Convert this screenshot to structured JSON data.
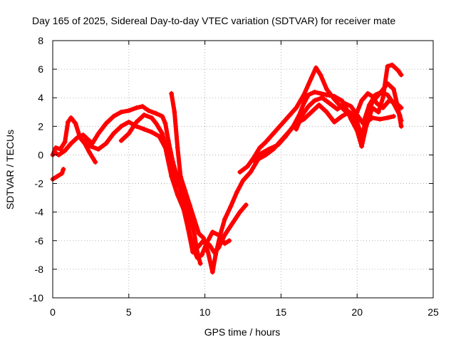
{
  "chart_data": {
    "type": "scatter",
    "title": "Day 165 of 2025, Sidereal Day-to-day VTEC variation (SDTVAR) for receiver mate",
    "xlabel": "GPS time / hours",
    "ylabel": "SDTVAR / TECUs",
    "xlim": [
      0,
      25
    ],
    "ylim": [
      -10,
      8
    ],
    "xticks": [
      "0",
      "5",
      "10",
      "15",
      "20",
      "25"
    ],
    "yticks": [
      "-10",
      "-8",
      "-6",
      "-4",
      "-2",
      "0",
      "2",
      "4",
      "6",
      "8"
    ],
    "grid": true,
    "marker": "+",
    "color": "#ff0000",
    "segments": [
      [
        [
          0.0,
          -1.7
        ],
        [
          0.3,
          -1.5
        ],
        [
          0.6,
          -1.3
        ],
        [
          0.7,
          -1.0
        ]
      ],
      [
        [
          0.0,
          0.0
        ],
        [
          0.2,
          0.5
        ],
        [
          0.5,
          0.4
        ],
        [
          0.8,
          0.9
        ],
        [
          1.0,
          2.3
        ],
        [
          1.2,
          2.6
        ],
        [
          1.5,
          2.2
        ],
        [
          1.8,
          1.2
        ],
        [
          2.1,
          0.8
        ],
        [
          2.4,
          0.2
        ],
        [
          2.8,
          -0.5
        ]
      ],
      [
        [
          0.1,
          0.2
        ],
        [
          0.4,
          0.0
        ],
        [
          0.8,
          0.3
        ],
        [
          1.2,
          0.8
        ],
        [
          1.6,
          1.2
        ],
        [
          2.0,
          1.4
        ],
        [
          2.3,
          1.1
        ],
        [
          2.6,
          0.8
        ],
        [
          3.0,
          1.5
        ],
        [
          3.5,
          2.2
        ],
        [
          4.0,
          2.7
        ],
        [
          4.5,
          3.0
        ],
        [
          5.0,
          3.1
        ],
        [
          5.5,
          3.3
        ],
        [
          5.9,
          3.4
        ],
        [
          6.3,
          3.1
        ],
        [
          6.8,
          2.9
        ],
        [
          7.2,
          2.7
        ],
        [
          7.4,
          2.2
        ],
        [
          7.6,
          1.0
        ],
        [
          7.9,
          -0.5
        ],
        [
          8.3,
          -2.0
        ],
        [
          8.6,
          -3.5
        ],
        [
          8.9,
          -5.0
        ],
        [
          9.2,
          -6.5
        ],
        [
          9.5,
          -7.2
        ],
        [
          9.8,
          -7.0
        ],
        [
          10.1,
          -6.2
        ],
        [
          10.5,
          -5.4
        ],
        [
          10.9,
          -5.6
        ],
        [
          11.3,
          -6.2
        ],
        [
          11.6,
          -6.0
        ]
      ],
      [
        [
          2.0,
          1.0
        ],
        [
          2.5,
          0.6
        ],
        [
          3.0,
          0.4
        ],
        [
          3.5,
          0.8
        ],
        [
          4.0,
          1.5
        ],
        [
          4.5,
          2.0
        ],
        [
          5.0,
          2.3
        ],
        [
          5.5,
          2.0
        ],
        [
          6.0,
          1.8
        ],
        [
          6.5,
          1.6
        ],
        [
          7.0,
          1.3
        ],
        [
          7.4,
          0.5
        ],
        [
          7.8,
          -1.5
        ],
        [
          8.2,
          -2.8
        ],
        [
          8.6,
          -3.8
        ],
        [
          8.9,
          -5.2
        ],
        [
          9.2,
          -6.8
        ],
        [
          9.5,
          -6.5
        ],
        [
          9.9,
          -6.0
        ],
        [
          10.3,
          -6.3
        ],
        [
          10.6,
          -6.8
        ],
        [
          10.9,
          -6.5
        ],
        [
          11.3,
          -5.6
        ],
        [
          11.8,
          -4.8
        ],
        [
          12.3,
          -4.0
        ],
        [
          12.7,
          -3.5
        ]
      ],
      [
        [
          4.5,
          1.0
        ],
        [
          5.0,
          1.5
        ],
        [
          5.5,
          2.3
        ],
        [
          6.0,
          2.8
        ],
        [
          6.5,
          2.6
        ],
        [
          6.8,
          2.2
        ],
        [
          7.2,
          1.5
        ],
        [
          7.6,
          -0.2
        ],
        [
          8.0,
          -1.5
        ],
        [
          8.4,
          -2.4
        ],
        [
          8.7,
          -3.0
        ],
        [
          9.0,
          -4.2
        ],
        [
          9.3,
          -5.5
        ],
        [
          9.5,
          -6.8
        ],
        [
          9.7,
          -7.6
        ]
      ],
      [
        [
          7.8,
          4.3
        ],
        [
          8.0,
          3.0
        ],
        [
          8.2,
          0.5
        ],
        [
          8.4,
          -1.5
        ],
        [
          8.7,
          -2.5
        ],
        [
          9.0,
          -3.5
        ],
        [
          9.3,
          -4.5
        ],
        [
          9.6,
          -5.5
        ],
        [
          9.9,
          -5.8
        ],
        [
          10.2,
          -6.8
        ],
        [
          10.5,
          -8.2
        ],
        [
          10.7,
          -7.0
        ],
        [
          11.0,
          -5.6
        ],
        [
          11.3,
          -4.5
        ],
        [
          11.7,
          -3.6
        ],
        [
          12.1,
          -2.6
        ],
        [
          12.5,
          -1.8
        ],
        [
          13.0,
          -1.2
        ],
        [
          13.5,
          -0.3
        ],
        [
          14.0,
          0.0
        ],
        [
          14.5,
          0.4
        ],
        [
          15.0,
          1.0
        ],
        [
          15.5,
          1.6
        ],
        [
          16.0,
          2.2
        ],
        [
          16.5,
          2.5
        ],
        [
          17.0,
          3.0
        ],
        [
          17.5,
          3.5
        ],
        [
          18.0,
          3.0
        ],
        [
          18.5,
          2.3
        ],
        [
          19.0,
          2.7
        ],
        [
          19.5,
          3.0
        ],
        [
          20.0,
          2.6
        ],
        [
          20.5,
          2.2
        ],
        [
          21.0,
          2.6
        ],
        [
          21.5,
          2.5
        ],
        [
          22.0,
          2.6
        ],
        [
          22.4,
          2.7
        ]
      ],
      [
        [
          12.3,
          -1.2
        ],
        [
          12.8,
          -0.8
        ],
        [
          13.2,
          -0.2
        ],
        [
          13.6,
          0.5
        ],
        [
          14.0,
          0.9
        ],
        [
          14.5,
          1.5
        ],
        [
          15.0,
          2.1
        ],
        [
          15.5,
          2.7
        ],
        [
          16.0,
          3.3
        ],
        [
          16.5,
          4.2
        ],
        [
          17.0,
          5.4
        ],
        [
          17.3,
          6.1
        ],
        [
          17.6,
          5.6
        ],
        [
          18.0,
          4.6
        ],
        [
          18.5,
          3.9
        ],
        [
          19.0,
          3.3
        ],
        [
          19.5,
          2.8
        ],
        [
          20.0,
          2.3
        ],
        [
          20.3,
          1.3
        ],
        [
          20.6,
          2.5
        ],
        [
          21.0,
          3.7
        ],
        [
          21.5,
          4.3
        ],
        [
          22.0,
          5.0
        ],
        [
          22.4,
          4.6
        ],
        [
          22.7,
          3.2
        ],
        [
          22.9,
          2.0
        ]
      ],
      [
        [
          13.2,
          -0.4
        ],
        [
          13.7,
          0.1
        ],
        [
          14.2,
          0.4
        ],
        [
          14.8,
          0.7
        ],
        [
          15.3,
          1.3
        ],
        [
          15.8,
          2.0
        ],
        [
          16.2,
          2.8
        ],
        [
          16.5,
          3.6
        ],
        [
          16.8,
          4.2
        ],
        [
          17.2,
          4.4
        ],
        [
          17.6,
          4.3
        ],
        [
          18.0,
          4.2
        ],
        [
          18.5,
          4.1
        ],
        [
          19.0,
          3.8
        ],
        [
          19.3,
          3.2
        ],
        [
          19.6,
          2.5
        ],
        [
          20.0,
          1.7
        ],
        [
          20.3,
          0.6
        ],
        [
          20.6,
          2.0
        ],
        [
          21.0,
          3.3
        ],
        [
          21.4,
          3.0
        ],
        [
          21.7,
          4.0
        ],
        [
          22.0,
          6.2
        ],
        [
          22.3,
          6.3
        ],
        [
          22.7,
          5.9
        ],
        [
          22.9,
          5.6
        ]
      ],
      [
        [
          16.0,
          1.8
        ],
        [
          16.4,
          2.8
        ],
        [
          16.8,
          3.4
        ],
        [
          17.2,
          3.8
        ],
        [
          17.7,
          4.0
        ],
        [
          18.2,
          3.6
        ],
        [
          18.7,
          3.2
        ],
        [
          19.2,
          3.6
        ],
        [
          19.6,
          3.4
        ],
        [
          20.0,
          2.8
        ],
        [
          20.4,
          2.2
        ],
        [
          20.8,
          3.5
        ],
        [
          21.2,
          4.2
        ],
        [
          21.6,
          4.4
        ],
        [
          22.0,
          4.2
        ],
        [
          22.4,
          3.6
        ],
        [
          22.8,
          2.8
        ],
        [
          22.9,
          2.4
        ]
      ],
      [
        [
          20.0,
          3.0
        ],
        [
          20.3,
          3.8
        ],
        [
          20.7,
          4.3
        ],
        [
          21.0,
          4.1
        ],
        [
          21.3,
          3.6
        ],
        [
          21.7,
          3.3
        ],
        [
          22.1,
          3.8
        ],
        [
          22.6,
          3.6
        ],
        [
          22.9,
          3.3
        ]
      ]
    ]
  }
}
